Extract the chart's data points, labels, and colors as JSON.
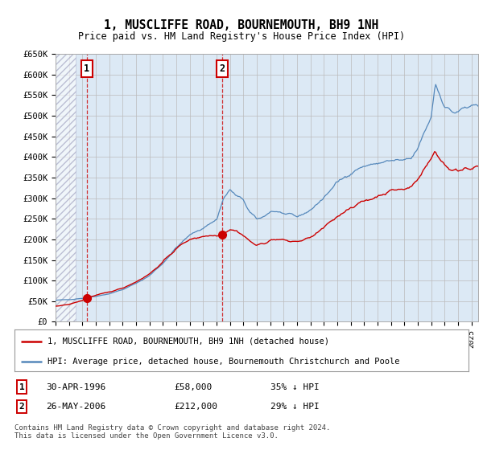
{
  "title": "1, MUSCLIFFE ROAD, BOURNEMOUTH, BH9 1NH",
  "subtitle": "Price paid vs. HM Land Registry's House Price Index (HPI)",
  "ylim": [
    0,
    650000
  ],
  "xlim_start": 1994.0,
  "xlim_end": 2025.5,
  "hatch_end_year": 1995.5,
  "sale1_year": 1996.33,
  "sale1_price": 58000,
  "sale1_label": "1",
  "sale1_date": "30-APR-1996",
  "sale1_amount": "£58,000",
  "sale1_hpi": "35% ↓ HPI",
  "sale2_year": 2006.42,
  "sale2_price": 212000,
  "sale2_label": "2",
  "sale2_date": "26-MAY-2006",
  "sale2_amount": "£212,000",
  "sale2_hpi": "29% ↓ HPI",
  "legend_line1": "1, MUSCLIFFE ROAD, BOURNEMOUTH, BH9 1NH (detached house)",
  "legend_line2": "HPI: Average price, detached house, Bournemouth Christchurch and Poole",
  "footer": "Contains HM Land Registry data © Crown copyright and database right 2024.\nThis data is licensed under the Open Government Licence v3.0.",
  "red_color": "#cc0000",
  "blue_color": "#5588bb",
  "plot_bg_color": "#dce9f5",
  "grid_color": "#bbbbbb",
  "yticks": [
    0,
    50000,
    100000,
    150000,
    200000,
    250000,
    300000,
    350000,
    400000,
    450000,
    500000,
    550000,
    600000,
    650000
  ],
  "ytick_labels": [
    "£0",
    "£50K",
    "£100K",
    "£150K",
    "£200K",
    "£250K",
    "£300K",
    "£350K",
    "£400K",
    "£450K",
    "£500K",
    "£550K",
    "£600K",
    "£650K"
  ]
}
